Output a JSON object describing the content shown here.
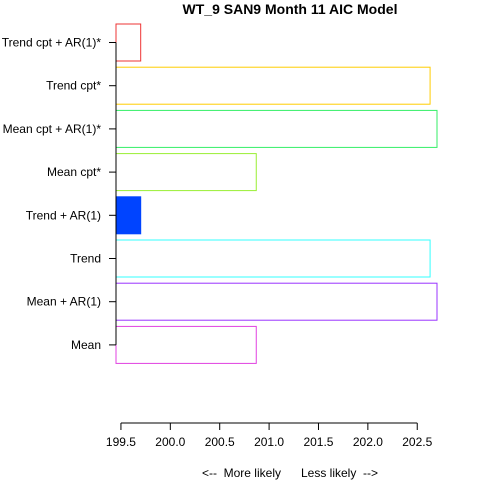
{
  "chart_data": {
    "type": "bar",
    "orientation": "horizontal",
    "title": "WT_9 SAN9 Month 11 AIC Model",
    "xlabel": "<--  More likely      Less likely  -->",
    "ylabel": "",
    "xlim": [
      199.45,
      202.7
    ],
    "x_ticks": [
      "199.5",
      "200.0",
      "200.5",
      "201.0",
      "201.5",
      "202.0",
      "202.5"
    ],
    "x_tick_values": [
      199.5,
      200.0,
      200.5,
      201.0,
      201.5,
      202.0,
      202.5
    ],
    "categories": [
      "Mean",
      "Mean + AR(1)",
      "Trend",
      "Trend + AR(1)",
      "Mean cpt*",
      "Mean cpt + AR(1)*",
      "Trend cpt*",
      "Trend cpt + AR(1)*"
    ],
    "values": [
      200.87,
      202.7,
      202.63,
      199.7,
      200.87,
      202.7,
      202.63,
      199.7
    ],
    "colors": [
      "#e040e0",
      "#9933ff",
      "#33ffff",
      "#0044ff",
      "#99ee33",
      "#33ee66",
      "#ffcc00",
      "#ee3333"
    ],
    "filled": [
      false,
      false,
      false,
      true,
      false,
      false,
      false,
      false
    ],
    "grid": false,
    "legend": "none"
  }
}
